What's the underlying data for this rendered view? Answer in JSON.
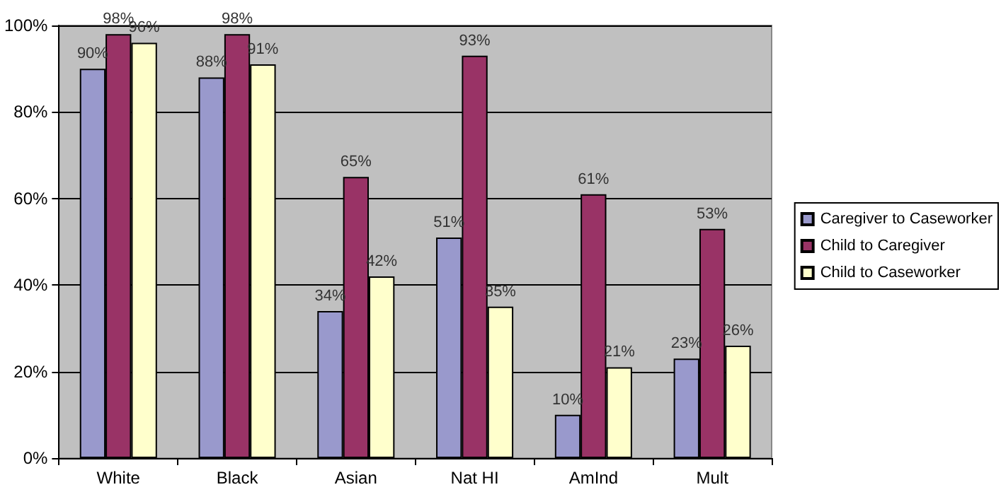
{
  "chart_data": {
    "type": "bar",
    "categories": [
      "White",
      "Black",
      "Asian",
      "Nat HI",
      "AmInd",
      "Mult"
    ],
    "series": [
      {
        "name": "Caregiver to Caseworker",
        "color": "#9999cc",
        "values": [
          90,
          88,
          34,
          51,
          10,
          23
        ],
        "value_labels": [
          "90%",
          "88%",
          "34%",
          "51%",
          "10%",
          "23%"
        ]
      },
      {
        "name": "Child to Caregiver",
        "color": "#993366",
        "values": [
          98,
          98,
          65,
          93,
          61,
          53
        ],
        "value_labels": [
          "98%",
          "98%",
          "65%",
          "93%",
          "61%",
          "53%"
        ]
      },
      {
        "name": "Child to Caseworker",
        "color": "#ffffcc",
        "values": [
          96,
          91,
          42,
          35,
          21,
          26
        ],
        "value_labels": [
          "96%",
          "91%",
          "42%",
          "35%",
          "21%",
          "26%"
        ]
      }
    ],
    "ylim": [
      0,
      100
    ],
    "yticks": [
      {
        "value": 0,
        "label": "0%"
      },
      {
        "value": 20,
        "label": "20%"
      },
      {
        "value": 40,
        "label": "40%"
      },
      {
        "value": 60,
        "label": "60%"
      },
      {
        "value": 80,
        "label": "80%"
      },
      {
        "value": 100,
        "label": "100%"
      }
    ],
    "grid": "y",
    "legend": "right"
  }
}
